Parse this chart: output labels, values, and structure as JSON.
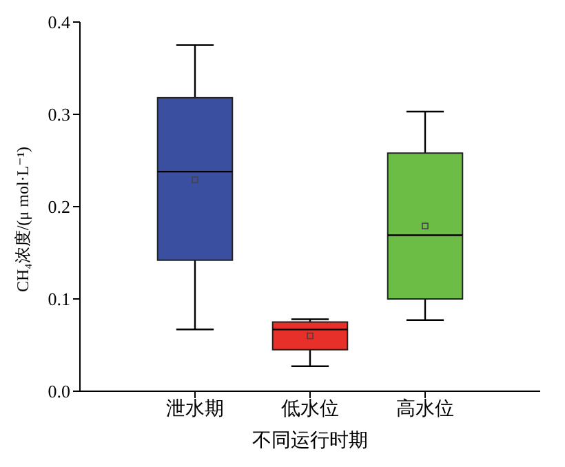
{
  "chart_data": {
    "type": "box",
    "xlabel": "不同运行时期",
    "ylabel": "CH₄浓度/(μ mol·L⁻¹)",
    "categories": [
      "泄水期",
      "低水位",
      "高水位"
    ],
    "colors": [
      "#3a4fa0",
      "#e8302a",
      "#6cbd45"
    ],
    "boxes": [
      {
        "low": 0.067,
        "q1": 0.142,
        "median": 0.238,
        "q3": 0.318,
        "high": 0.375,
        "mean": 0.229
      },
      {
        "low": 0.027,
        "q1": 0.045,
        "median": 0.067,
        "q3": 0.075,
        "high": 0.078,
        "mean": 0.06
      },
      {
        "low": 0.077,
        "q1": 0.1,
        "median": 0.169,
        "q3": 0.258,
        "high": 0.303,
        "mean": 0.179
      }
    ],
    "ylim": [
      0,
      0.4
    ],
    "yticks": [
      {
        "value": 0,
        "label": "0.0"
      },
      0.1,
      0.2,
      0.3,
      0.4
    ],
    "grid": false,
    "legend": false
  }
}
